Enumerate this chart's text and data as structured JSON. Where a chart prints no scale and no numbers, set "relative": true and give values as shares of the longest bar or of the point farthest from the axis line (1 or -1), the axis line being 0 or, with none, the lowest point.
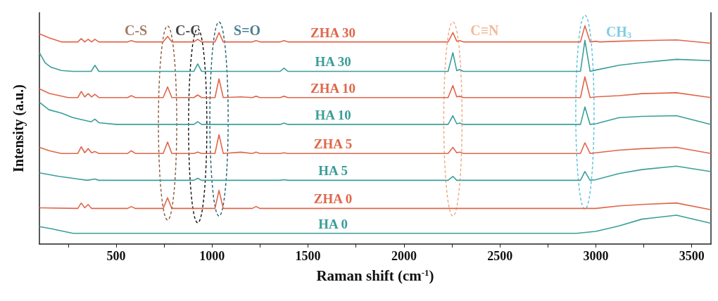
{
  "chart_data": {
    "type": "line",
    "relative": true,
    "xlabel": "Raman shift (cm$^{-1}$)",
    "ylabel": "Intensity (a.u.)",
    "xlim": [
      100,
      3600
    ],
    "xticks": [
      {
        "value": 250,
        "label": null
      },
      500,
      {
        "value": 750,
        "label": null
      },
      1000,
      {
        "value": 1250,
        "label": null
      },
      1500,
      {
        "value": 1750,
        "label": null
      },
      2000,
      {
        "value": 2250,
        "label": null
      },
      2500,
      {
        "value": 2750,
        "label": null
      },
      3000,
      {
        "value": 3250,
        "label": null
      },
      3500
    ],
    "tick_labels": "x",
    "grid": false,
    "legend": false,
    "marker": "none",
    "line_style": "solid",
    "annotations": [
      {
        "text": "C-S",
        "x": 768,
        "y": 0.951
      },
      {
        "text": "C-C",
        "x": 925,
        "y": 0.938
      },
      {
        "text": "S=O",
        "x": 1036,
        "y": 0.969
      },
      {
        "text": "C≡N",
        "x": 2255,
        "y": 0.969
      },
      {
        "text": "CH$_{3}$",
        "x": 2943,
        "y": 1.0
      }
    ],
    "series": [
      {
        "name": "ZHA 30",
        "color": "#e0664a",
        "x": [
          100,
          150,
          214,
          300,
          318,
          336,
          354,
          372,
          389,
          410,
          560,
          579,
          600,
          745,
          768,
          790,
          905,
          925,
          945,
          1015,
          1036,
          1058,
          1210,
          1229,
          1250,
          1355,
          1375,
          1395,
          2230,
          2255,
          2275,
          2290,
          2310,
          2920,
          2943,
          2970,
          3000,
          3020,
          3121,
          3240,
          3420,
          3600
        ],
        "values": [
          0.963,
          0.945,
          0.926,
          0.926,
          0.941,
          0.926,
          0.938,
          0.926,
          0.938,
          0.926,
          0.926,
          0.932,
          0.926,
          0.926,
          0.951,
          0.926,
          0.926,
          0.938,
          0.926,
          0.926,
          0.969,
          0.926,
          0.926,
          0.932,
          0.926,
          0.926,
          0.932,
          0.926,
          0.926,
          0.969,
          0.929,
          0.932,
          0.926,
          0.926,
          1.0,
          0.926,
          0.929,
          0.926,
          0.929,
          0.932,
          0.935,
          0.92
        ]
      },
      {
        "name": "HA 30",
        "color": "#3a9e9a",
        "x": [
          100,
          130,
          160,
          214,
          275,
          370,
          389,
          410,
          905,
          925,
          945,
          1355,
          1375,
          1395,
          2230,
          2255,
          2275,
          2290,
          2310,
          2920,
          2943,
          2970,
          3000,
          3121,
          3240,
          3420,
          3600
        ],
        "values": [
          0.877,
          0.83,
          0.81,
          0.795,
          0.791,
          0.791,
          0.819,
          0.791,
          0.791,
          0.825,
          0.791,
          0.791,
          0.806,
          0.791,
          0.791,
          0.877,
          0.794,
          0.8,
          0.791,
          0.791,
          0.933,
          0.791,
          0.797,
          0.819,
          0.831,
          0.846,
          0.84
        ]
      },
      {
        "name": "ZHA 10",
        "color": "#e0664a",
        "x": [
          100,
          150,
          250,
          300,
          318,
          336,
          354,
          372,
          389,
          410,
          560,
          579,
          600,
          745,
          768,
          790,
          905,
          925,
          945,
          1015,
          1036,
          1058,
          1150,
          1210,
          1229,
          1250,
          1355,
          1375,
          1395,
          2230,
          2255,
          2275,
          2290,
          2310,
          2920,
          2943,
          2970,
          3000,
          3121,
          3240,
          3420,
          3600
        ],
        "values": [
          0.711,
          0.69,
          0.671,
          0.671,
          0.699,
          0.674,
          0.689,
          0.674,
          0.686,
          0.671,
          0.671,
          0.68,
          0.671,
          0.671,
          0.72,
          0.671,
          0.671,
          0.683,
          0.671,
          0.671,
          0.757,
          0.671,
          0.674,
          0.671,
          0.677,
          0.671,
          0.671,
          0.677,
          0.671,
          0.671,
          0.726,
          0.674,
          0.677,
          0.671,
          0.671,
          0.766,
          0.671,
          0.674,
          0.68,
          0.689,
          0.693,
          0.671
        ]
      },
      {
        "name": "HA 10",
        "color": "#3a9e9a",
        "x": [
          100,
          150,
          214,
          275,
          370,
          389,
          410,
          500,
          905,
          925,
          945,
          1355,
          1375,
          1395,
          2230,
          2255,
          2275,
          2290,
          2310,
          2920,
          2943,
          2970,
          3000,
          3121,
          3240,
          3420,
          3600
        ],
        "values": [
          0.65,
          0.615,
          0.6,
          0.579,
          0.56,
          0.572,
          0.556,
          0.548,
          0.548,
          0.56,
          0.548,
          0.548,
          0.554,
          0.548,
          0.548,
          0.588,
          0.551,
          0.554,
          0.548,
          0.548,
          0.628,
          0.548,
          0.551,
          0.579,
          0.585,
          0.588,
          0.548
        ]
      },
      {
        "name": "ZHA 5",
        "color": "#e0664a",
        "x": [
          100,
          150,
          214,
          300,
          318,
          336,
          354,
          372,
          389,
          410,
          560,
          579,
          600,
          745,
          768,
          790,
          905,
          925,
          945,
          1015,
          1036,
          1058,
          1150,
          1210,
          1229,
          1250,
          1355,
          1375,
          1395,
          2230,
          2255,
          2275,
          2290,
          2310,
          2920,
          2943,
          2970,
          3000,
          3121,
          3240,
          3420,
          3600
        ],
        "values": [
          0.443,
          0.428,
          0.415,
          0.415,
          0.446,
          0.418,
          0.437,
          0.418,
          0.424,
          0.415,
          0.415,
          0.427,
          0.415,
          0.415,
          0.467,
          0.415,
          0.415,
          0.421,
          0.415,
          0.415,
          0.501,
          0.415,
          0.421,
          0.415,
          0.421,
          0.415,
          0.415,
          0.418,
          0.415,
          0.415,
          0.443,
          0.418,
          0.421,
          0.415,
          0.415,
          0.464,
          0.415,
          0.418,
          0.43,
          0.437,
          0.443,
          0.415
        ]
      },
      {
        "name": "HA 5",
        "color": "#3a9e9a",
        "x": [
          100,
          200,
          300,
          350,
          389,
          410,
          905,
          925,
          945,
          1355,
          1375,
          1395,
          2230,
          2255,
          2275,
          2920,
          2943,
          2970,
          3000,
          3121,
          3240,
          3420,
          3600
        ],
        "values": [
          0.326,
          0.31,
          0.298,
          0.292,
          0.298,
          0.292,
          0.292,
          0.301,
          0.292,
          0.292,
          0.295,
          0.292,
          0.292,
          0.31,
          0.292,
          0.292,
          0.332,
          0.292,
          0.295,
          0.323,
          0.341,
          0.357,
          0.332
        ]
      },
      {
        "name": "ZHA 0",
        "color": "#e0664a",
        "x": [
          100,
          300,
          318,
          336,
          354,
          372,
          560,
          579,
          600,
          745,
          768,
          790,
          1015,
          1036,
          1058,
          1210,
          1229,
          1250,
          3000,
          3121,
          3240,
          3420,
          3600
        ],
        "values": [
          0.166,
          0.163,
          0.188,
          0.166,
          0.181,
          0.163,
          0.163,
          0.172,
          0.163,
          0.163,
          0.212,
          0.163,
          0.163,
          0.246,
          0.163,
          0.163,
          0.172,
          0.163,
          0.163,
          0.175,
          0.181,
          0.188,
          0.157
        ]
      },
      {
        "name": "HA 0",
        "color": "#3a9e9a",
        "x": [
          100,
          157,
          275,
          2900,
          3000,
          3121,
          3240,
          3300,
          3420,
          3600
        ],
        "values": [
          0.08,
          0.071,
          0.049,
          0.049,
          0.058,
          0.083,
          0.114,
          0.12,
          0.132,
          0.095
        ]
      }
    ]
  }
}
